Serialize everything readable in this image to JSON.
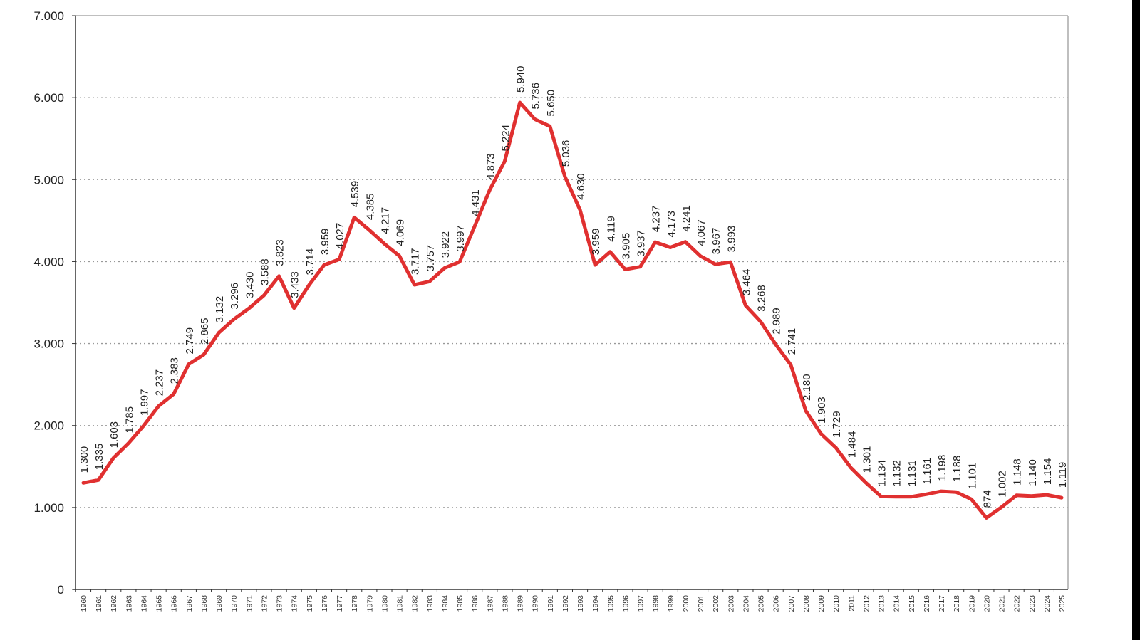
{
  "chart_data": {
    "type": "line",
    "title": "",
    "xlabel": "",
    "ylabel": "",
    "ylim": [
      0,
      7000
    ],
    "yticks": [
      0,
      1000,
      2000,
      3000,
      4000,
      5000,
      6000,
      7000
    ],
    "ytick_labels": [
      "0",
      "1.000",
      "2.000",
      "3.000",
      "4.000",
      "5.000",
      "6.000",
      "7.000"
    ],
    "grid": "horizontal dotted",
    "line_color": "#e03030",
    "categories": [
      "1960",
      "1961",
      "1962",
      "1963",
      "1964",
      "1965",
      "1966",
      "1967",
      "1968",
      "1969",
      "1970",
      "1971",
      "1972",
      "1973",
      "1974",
      "1975",
      "1976",
      "1977",
      "1978",
      "1979",
      "1980",
      "1981",
      "1982",
      "1983",
      "1984",
      "1985",
      "1986",
      "1987",
      "1988",
      "1989",
      "1990",
      "1991",
      "1992",
      "1993",
      "1994",
      "1995",
      "1996",
      "1997",
      "1998",
      "1999",
      "2000",
      "2001",
      "2002",
      "2003",
      "2004",
      "2005",
      "2006",
      "2007",
      "2008",
      "2009",
      "2010",
      "2011",
      "2012",
      "2013",
      "2014",
      "2015",
      "2016",
      "2017",
      "2018",
      "2019",
      "2020",
      "2021",
      "2022",
      "2023",
      "2024",
      "2025"
    ],
    "values": [
      1300,
      1335,
      1603,
      1785,
      1997,
      2237,
      2383,
      2749,
      2865,
      3132,
      3296,
      3430,
      3588,
      3823,
      3433,
      3714,
      3959,
      4027,
      4539,
      4385,
      4217,
      4069,
      3717,
      3757,
      3922,
      3997,
      4431,
      4873,
      5224,
      5940,
      5736,
      5650,
      5036,
      4630,
      3959,
      4119,
      3905,
      3937,
      4237,
      4173,
      4241,
      4067,
      3967,
      3993,
      3464,
      3268,
      2989,
      2741,
      2180,
      1903,
      1729,
      1484,
      1301,
      1134,
      1132,
      1131,
      1161,
      1198,
      1188,
      1101,
      874,
      1002,
      1148,
      1140,
      1154,
      1119
    ],
    "data_labels": [
      "1.300",
      "1.335",
      "1.603",
      "1.785",
      "1.997",
      "2.237",
      "2.383",
      "2.749",
      "2.865",
      "3.132",
      "3.296",
      "3.430",
      "3.588",
      "3.823",
      "3.433",
      "3.714",
      "3.959",
      "4.027",
      "4.539",
      "4.385",
      "4.217",
      "4.069",
      "3.717",
      "3.757",
      "3.922",
      "3.997",
      "4.431",
      "4.873",
      "5.224",
      "5.940",
      "5.736",
      "5.650",
      "5.036",
      "4.630",
      "3.959",
      "4.119",
      "3.905",
      "3.937",
      "4.237",
      "4.173",
      "4.241",
      "4.067",
      "3.967",
      "3.993",
      "3.464",
      "3.268",
      "2.989",
      "2.741",
      "2.180",
      "1.903",
      "1.729",
      "1.484",
      "1.301",
      "1.134",
      "1.132",
      "1.131",
      "1.161",
      "1.198",
      "1.188",
      "1.101",
      "874",
      "1.002",
      "1.148",
      "1.140",
      "1.154",
      "1.119"
    ]
  }
}
